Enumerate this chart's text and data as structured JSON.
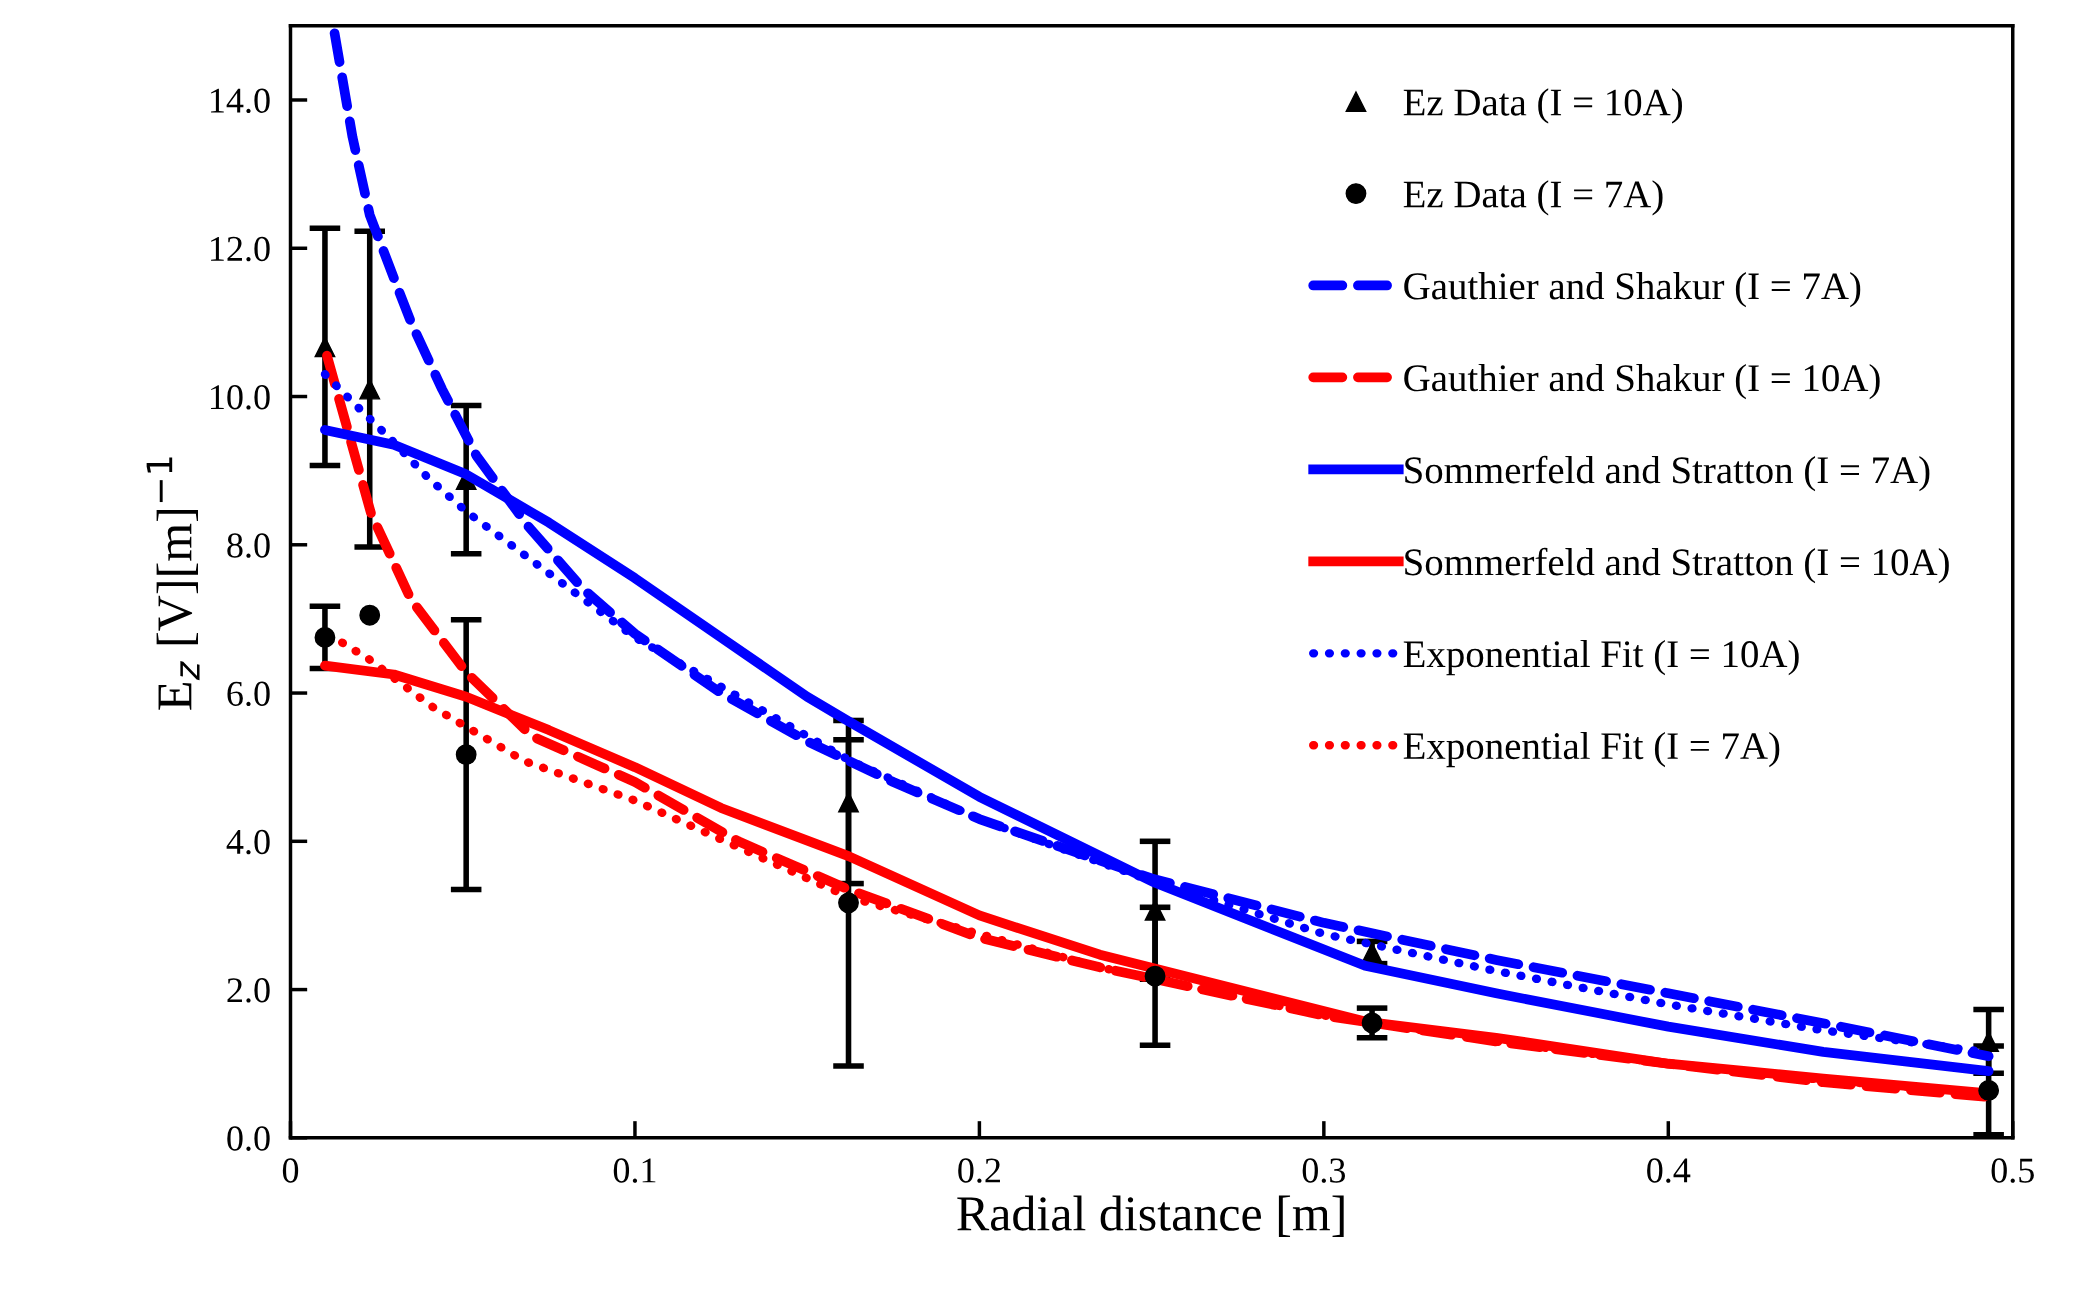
{
  "chart_data": {
    "type": "line",
    "xlabel": "Radial distance [m]",
    "ylabel": "E$_{z}$ [V][m]$^{−1}$",
    "xlim": [
      0,
      0.5
    ],
    "xticks": [
      0,
      0.1,
      0.2,
      0.3,
      0.4,
      0.5
    ],
    "ylim": [
      0,
      15
    ],
    "yticks": [
      {
        "value": 0,
        "label": "0.0"
      },
      {
        "value": 2,
        "label": "2.0"
      },
      {
        "value": 4,
        "label": "4.0"
      },
      {
        "value": 6,
        "label": "6.0"
      },
      {
        "value": 8,
        "label": "8.0"
      },
      {
        "value": 10,
        "label": "10.0"
      },
      {
        "value": 12,
        "label": "12.0"
      },
      {
        "value": 14,
        "label": "14.0"
      }
    ],
    "grid": false,
    "legend": "top right",
    "series": [
      {
        "name": "Ez Data (I = 10A)",
        "type": "scatter",
        "marker": "triangle",
        "color": "#000000",
        "x": [
          0.01,
          0.023,
          0.051,
          0.162,
          0.251,
          0.314,
          0.493
        ],
        "values": [
          10.67,
          10.1,
          8.88,
          4.53,
          3.07,
          2.5,
          1.3
        ],
        "errors": [
          1.6,
          2.13,
          1.0,
          1.1,
          0.93,
          0.15,
          0.43
        ]
      },
      {
        "name": "Ez Data (I = 7A)",
        "type": "scatter",
        "marker": "circle",
        "color": "#000000",
        "x": [
          0.01,
          0.023,
          0.051,
          0.162,
          0.251,
          0.314,
          0.493
        ],
        "values": [
          6.75,
          7.05,
          5.17,
          3.17,
          2.18,
          1.55,
          0.64
        ],
        "errors": [
          0.42,
          null,
          1.82,
          2.2,
          0.93,
          0.2,
          0.6
        ]
      },
      {
        "name": "Gauthier and Shakur (I = 7A)",
        "line_style": "dashed",
        "color": "#0000ff",
        "x": [
          0.0128,
          0.018,
          0.023,
          0.03,
          0.035,
          0.044,
          0.054,
          0.069,
          0.085,
          0.1,
          0.125,
          0.15,
          0.175,
          0.2,
          0.225,
          0.25,
          0.3,
          0.35,
          0.4,
          0.45,
          0.493
        ],
        "values": [
          14.9,
          13.5,
          12.45,
          11.6,
          11.0,
          10.1,
          9.2,
          8.25,
          7.4,
          6.8,
          6.0,
          5.35,
          4.8,
          4.3,
          3.9,
          3.5,
          2.9,
          2.4,
          1.95,
          1.5,
          1.1
        ]
      },
      {
        "name": "Gauthier and Shakur (I = 10A)",
        "line_style": "dashed",
        "color": "#ff0000",
        "x": [
          0.0106,
          0.0234,
          0.035,
          0.051,
          0.07,
          0.1,
          0.13,
          0.162,
          0.2,
          0.235,
          0.3,
          0.35,
          0.4,
          0.445,
          0.493
        ],
        "values": [
          10.55,
          8.42,
          7.26,
          6.28,
          5.42,
          4.8,
          4.0,
          3.35,
          2.7,
          2.3,
          1.65,
          1.3,
          1.0,
          0.75,
          0.55
        ]
      },
      {
        "name": "Sommerfeld and Stratton (I = 7A)",
        "line_style": "solid",
        "color": "#0000ff",
        "x": [
          0.01,
          0.03,
          0.051,
          0.075,
          0.1,
          0.125,
          0.15,
          0.162,
          0.2,
          0.251,
          0.312,
          0.35,
          0.4,
          0.445,
          0.493
        ],
        "values": [
          9.55,
          9.35,
          8.95,
          8.3,
          7.55,
          6.75,
          5.95,
          5.62,
          4.6,
          3.44,
          2.32,
          1.95,
          1.5,
          1.16,
          0.9
        ]
      },
      {
        "name": "Sommerfeld and Stratton (I = 10A)",
        "line_style": "solid",
        "color": "#ff0000",
        "x": [
          0.01,
          0.03,
          0.051,
          0.075,
          0.1,
          0.125,
          0.162,
          0.2,
          0.235,
          0.312,
          0.35,
          0.4,
          0.445,
          0.493
        ],
        "values": [
          6.37,
          6.25,
          5.95,
          5.5,
          5.0,
          4.45,
          3.8,
          3.0,
          2.47,
          1.57,
          1.35,
          1.0,
          0.8,
          0.6
        ]
      },
      {
        "name": "Exponential Fit (I = 10A)",
        "line_style": "dotted",
        "color": "#0000ff",
        "x": [
          0.01,
          0.0175,
          0.029,
          0.04,
          0.051,
          0.068,
          0.1,
          0.162,
          0.2,
          0.251,
          0.3,
          0.35,
          0.4,
          0.445,
          0.493
        ],
        "values": [
          10.3,
          9.95,
          9.43,
          8.9,
          8.45,
          7.86,
          6.75,
          5.1,
          4.3,
          3.45,
          2.75,
          2.25,
          1.8,
          1.45,
          1.15
        ]
      },
      {
        "name": "Exponential Fit (I = 7A)",
        "line_style": "dotted",
        "color": "#ff0000",
        "x": [
          0.015,
          0.023,
          0.041,
          0.068,
          0.1,
          0.162,
          0.2,
          0.235,
          0.3,
          0.35,
          0.4,
          0.445,
          0.493
        ],
        "values": [
          6.68,
          6.45,
          5.82,
          5.08,
          4.55,
          3.25,
          2.75,
          2.3,
          1.65,
          1.3,
          1.0,
          0.78,
          0.6
        ]
      }
    ]
  }
}
